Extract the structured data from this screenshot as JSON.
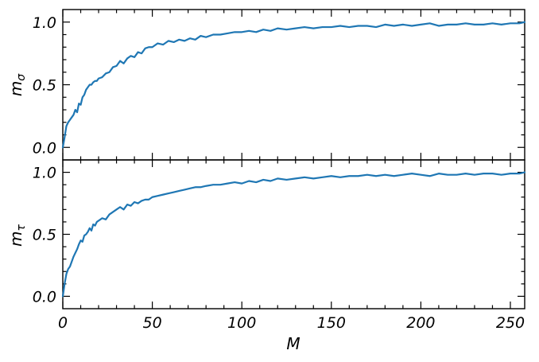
{
  "chart_data": {
    "type": "line",
    "shared_x_axis": {
      "label": "M",
      "xlim": [
        0,
        258
      ],
      "major_ticks": [
        0,
        50,
        100,
        150,
        200,
        250
      ],
      "tick_labels": [
        "0",
        "50",
        "100",
        "150",
        "200",
        "250"
      ]
    },
    "color": "#1f77b4",
    "panels": [
      {
        "ylabel_main": "m",
        "ylabel_sub": "σ",
        "ylim": [
          -0.1,
          1.1
        ],
        "yticks": [
          0.0,
          0.5,
          1.0
        ],
        "ytick_labels": [
          "0.0",
          "0.5",
          "1.0"
        ],
        "series": [
          {
            "x": [
              0,
              1,
              2,
              3,
              4,
              5,
              6,
              7,
              8,
              9,
              10,
              11,
              12,
              13,
              14,
              15,
              16,
              17,
              18,
              19,
              20,
              22,
              24,
              26,
              28,
              30,
              32,
              34,
              36,
              38,
              40,
              42,
              44,
              46,
              48,
              50,
              53,
              56,
              59,
              62,
              65,
              68,
              71,
              74,
              77,
              80,
              84,
              88,
              92,
              96,
              100,
              104,
              108,
              112,
              116,
              120,
              125,
              130,
              135,
              140,
              145,
              150,
              155,
              160,
              165,
              170,
              175,
              180,
              185,
              190,
              195,
              200,
              205,
              210,
              215,
              220,
              225,
              230,
              235,
              240,
              245,
              250,
              255,
              258
            ],
            "y": [
              0.0,
              0.08,
              0.17,
              0.2,
              0.22,
              0.24,
              0.26,
              0.3,
              0.28,
              0.35,
              0.34,
              0.4,
              0.42,
              0.46,
              0.48,
              0.5,
              0.5,
              0.52,
              0.53,
              0.53,
              0.55,
              0.56,
              0.59,
              0.6,
              0.64,
              0.65,
              0.69,
              0.67,
              0.71,
              0.73,
              0.72,
              0.76,
              0.75,
              0.79,
              0.8,
              0.8,
              0.83,
              0.82,
              0.85,
              0.84,
              0.86,
              0.85,
              0.87,
              0.86,
              0.89,
              0.88,
              0.9,
              0.9,
              0.91,
              0.92,
              0.92,
              0.93,
              0.92,
              0.94,
              0.93,
              0.95,
              0.94,
              0.95,
              0.96,
              0.95,
              0.96,
              0.96,
              0.97,
              0.96,
              0.97,
              0.97,
              0.96,
              0.98,
              0.97,
              0.98,
              0.97,
              0.98,
              0.99,
              0.97,
              0.98,
              0.98,
              0.99,
              0.98,
              0.98,
              0.99,
              0.98,
              0.99,
              0.99,
              1.0
            ]
          }
        ]
      },
      {
        "ylabel_main": "m",
        "ylabel_sub": "τ",
        "ylim": [
          -0.1,
          1.1
        ],
        "yticks": [
          0.0,
          0.5,
          1.0
        ],
        "ytick_labels": [
          "0.0",
          "0.5",
          "1.0"
        ],
        "series": [
          {
            "x": [
              0,
              1,
              2,
              3,
              4,
              5,
              6,
              7,
              8,
              9,
              10,
              11,
              12,
              13,
              14,
              15,
              16,
              17,
              18,
              19,
              20,
              22,
              24,
              26,
              28,
              30,
              32,
              34,
              36,
              38,
              40,
              42,
              44,
              46,
              48,
              50,
              53,
              56,
              59,
              62,
              65,
              68,
              71,
              74,
              77,
              80,
              84,
              88,
              92,
              96,
              100,
              104,
              108,
              112,
              116,
              120,
              125,
              130,
              135,
              140,
              145,
              150,
              155,
              160,
              165,
              170,
              175,
              180,
              185,
              190,
              195,
              200,
              205,
              210,
              215,
              220,
              225,
              230,
              235,
              240,
              245,
              250,
              255,
              258
            ],
            "y": [
              0.0,
              0.1,
              0.18,
              0.22,
              0.24,
              0.28,
              0.32,
              0.35,
              0.38,
              0.42,
              0.45,
              0.44,
              0.49,
              0.5,
              0.52,
              0.55,
              0.53,
              0.58,
              0.57,
              0.6,
              0.61,
              0.63,
              0.62,
              0.66,
              0.68,
              0.7,
              0.72,
              0.7,
              0.74,
              0.73,
              0.76,
              0.75,
              0.77,
              0.78,
              0.78,
              0.8,
              0.81,
              0.82,
              0.83,
              0.84,
              0.85,
              0.86,
              0.87,
              0.88,
              0.88,
              0.89,
              0.9,
              0.9,
              0.91,
              0.92,
              0.91,
              0.93,
              0.92,
              0.94,
              0.93,
              0.95,
              0.94,
              0.95,
              0.96,
              0.95,
              0.96,
              0.97,
              0.96,
              0.97,
              0.97,
              0.98,
              0.97,
              0.98,
              0.97,
              0.98,
              0.99,
              0.98,
              0.97,
              0.99,
              0.98,
              0.98,
              0.99,
              0.98,
              0.99,
              0.99,
              0.98,
              0.99,
              0.99,
              1.0
            ]
          }
        ]
      }
    ]
  }
}
